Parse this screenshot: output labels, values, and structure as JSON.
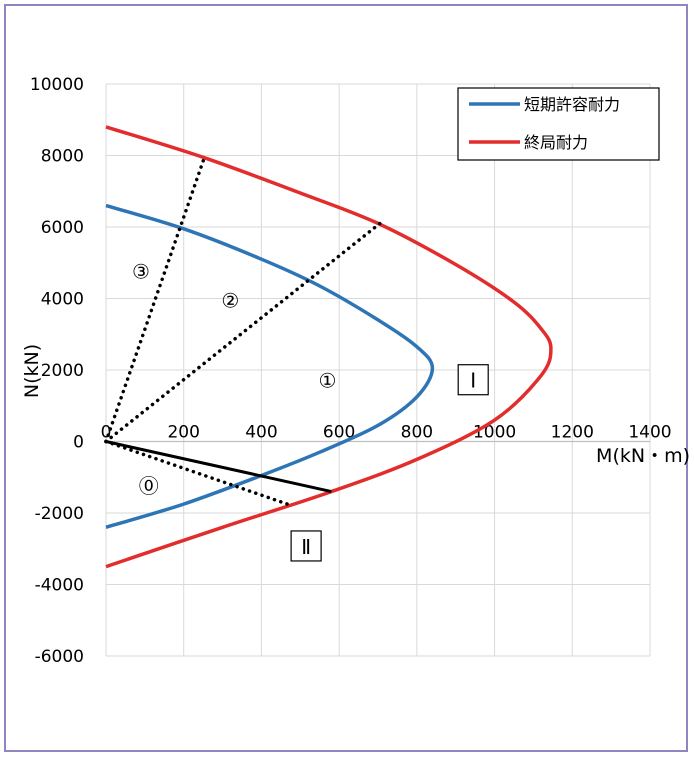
{
  "chart_data": {
    "type": "line",
    "xlabel": "M(kN・m)",
    "ylabel": "N(kN)",
    "xlim": [
      0,
      1400
    ],
    "ylim": [
      -6000,
      10000
    ],
    "x_ticks": [
      0,
      200,
      400,
      600,
      800,
      1000,
      1200,
      1400
    ],
    "y_ticks": [
      10000,
      8000,
      6000,
      4000,
      2000,
      0,
      -2000,
      -4000,
      -6000
    ],
    "grid": true,
    "legend_position": "top-right",
    "colors": {
      "short_term": "#2e75b6",
      "ultimate": "#e32c2c",
      "load_line": "#000000"
    },
    "series": [
      {
        "name": "短期許容耐力",
        "color": "#2e75b6",
        "points": [
          [
            0,
            6600
          ],
          [
            200,
            5950
          ],
          [
            400,
            5100
          ],
          [
            550,
            4350
          ],
          [
            700,
            3400
          ],
          [
            800,
            2650
          ],
          [
            840,
            2050
          ],
          [
            800,
            1250
          ],
          [
            700,
            450
          ],
          [
            550,
            -300
          ],
          [
            400,
            -950
          ],
          [
            200,
            -1750
          ],
          [
            0,
            -2400
          ]
        ]
      },
      {
        "name": "終局耐力",
        "color": "#e32c2c",
        "points": [
          [
            0,
            8800
          ],
          [
            250,
            7950
          ],
          [
            500,
            6950
          ],
          [
            700,
            6100
          ],
          [
            900,
            4950
          ],
          [
            1050,
            3900
          ],
          [
            1120,
            3150
          ],
          [
            1145,
            2600
          ],
          [
            1120,
            1850
          ],
          [
            1000,
            600
          ],
          [
            800,
            -500
          ],
          [
            580,
            -1400
          ],
          [
            300,
            -2400
          ],
          [
            0,
            -3500
          ]
        ]
      }
    ],
    "load_lines": [
      {
        "style": "dotted",
        "color": "#000000",
        "from": [
          0,
          0
        ],
        "to": [
          255,
          8000
        ]
      },
      {
        "style": "dotted",
        "color": "#000000",
        "from": [
          0,
          0
        ],
        "to": [
          705,
          6100
        ]
      },
      {
        "style": "dotted",
        "color": "#000000",
        "from": [
          0,
          0
        ],
        "to": [
          480,
          -1800
        ]
      },
      {
        "style": "solid",
        "color": "#000000",
        "from": [
          0,
          0
        ],
        "to": [
          580,
          -1400
        ]
      }
    ],
    "annotations": [
      {
        "text": "③",
        "x": 90,
        "y": 4750,
        "boxed": false
      },
      {
        "text": "②",
        "x": 320,
        "y": 3950,
        "boxed": false
      },
      {
        "text": "①",
        "x": 570,
        "y": 1700,
        "boxed": false
      },
      {
        "text": "⓪",
        "x": 110,
        "y": -1250,
        "boxed": false
      },
      {
        "text": "Ⅰ",
        "x": 945,
        "y": 1700,
        "boxed": true
      },
      {
        "text": "Ⅱ",
        "x": 515,
        "y": -2950,
        "boxed": true
      }
    ]
  }
}
